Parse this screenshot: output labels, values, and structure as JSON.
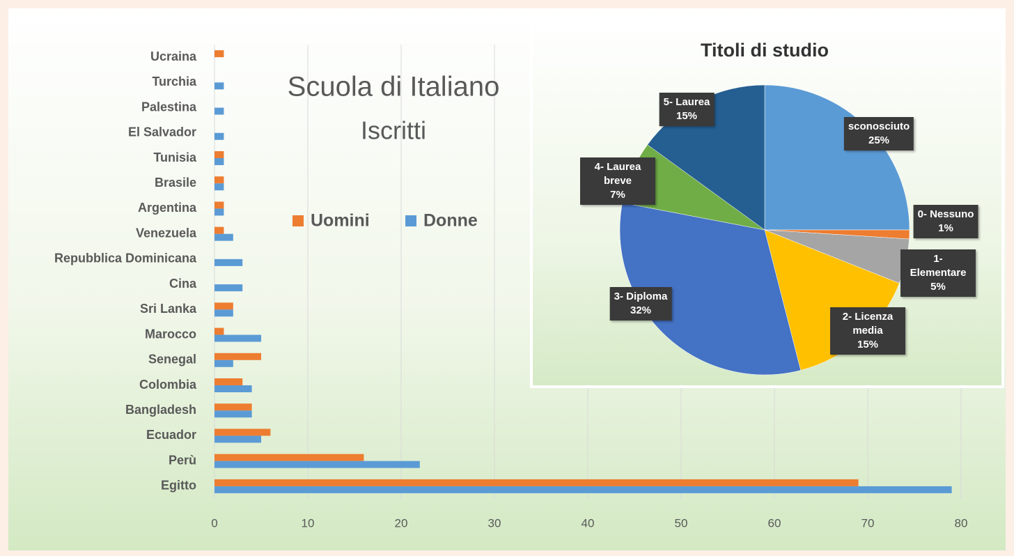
{
  "chart_data": [
    {
      "type": "barh",
      "title": "Scuola di Italiano",
      "subtitle": "Iscritti",
      "categories": [
        "Ucraina",
        "Turchia",
        "Palestina",
        "El Salvador",
        "Tunisia",
        "Brasile",
        "Argentina",
        "Venezuela",
        "Repubblica Dominicana",
        "Cina",
        "Sri Lanka",
        "Marocco",
        "Senegal",
        "Colombia",
        "Bangladesh",
        "Ecuador",
        "Perù",
        "Egitto"
      ],
      "series": [
        {
          "name": "Uomini",
          "color": "#ed7d31",
          "values": [
            1,
            0,
            0,
            0,
            1,
            1,
            1,
            1,
            0,
            0,
            2,
            1,
            5,
            3,
            4,
            6,
            16,
            69
          ]
        },
        {
          "name": "Donne",
          "color": "#5b9bd5",
          "values": [
            0,
            1,
            1,
            1,
            1,
            1,
            1,
            2,
            3,
            3,
            2,
            5,
            2,
            4,
            4,
            5,
            22,
            79
          ]
        }
      ],
      "xlim": [
        0,
        80
      ],
      "xticks": [
        0,
        10,
        20,
        30,
        40,
        50,
        60,
        70,
        80
      ],
      "grid": true
    },
    {
      "type": "pie",
      "title": "Titoli di studio",
      "categories": [
        "sconosciuto",
        "0- Nessuno",
        "1- Elementare",
        "2- Licenza media",
        "3- Diploma",
        "4- Laurea breve",
        "5- Laurea"
      ],
      "values": [
        25,
        1,
        5,
        15,
        32,
        7,
        15
      ],
      "value_labels": [
        "25%",
        "1%",
        "5%",
        "15%",
        "32%",
        "7%",
        "15%"
      ],
      "colors": [
        "#5b9bd5",
        "#ed7d31",
        "#a5a5a5",
        "#ffc000",
        "#4472c4",
        "#70ad47",
        "#255e91"
      ]
    }
  ]
}
